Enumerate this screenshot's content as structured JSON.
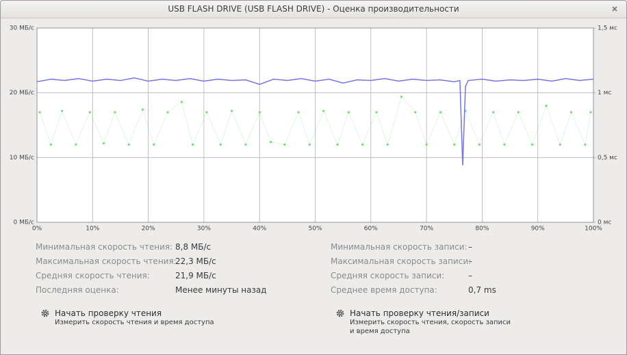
{
  "window": {
    "title": "USB FLASH DRIVE (USB FLASH DRIVE) - Оценка производительности"
  },
  "chart_data": {
    "type": "line",
    "xlim": [
      0,
      100
    ],
    "xticks": [
      {
        "value": 0,
        "label": "0%"
      },
      {
        "value": 10,
        "label": "10%"
      },
      {
        "value": 20,
        "label": "20%"
      },
      {
        "value": 30,
        "label": "30%"
      },
      {
        "value": 40,
        "label": "40%"
      },
      {
        "value": 50,
        "label": "50%"
      },
      {
        "value": 60,
        "label": "60%"
      },
      {
        "value": 70,
        "label": "70%"
      },
      {
        "value": 80,
        "label": "80%"
      },
      {
        "value": 90,
        "label": "90%"
      },
      {
        "value": 100,
        "label": "100%"
      }
    ],
    "ylim": [
      0,
      30
    ],
    "yticks": [
      {
        "value": 0,
        "label": "0 МБ/с"
      },
      {
        "value": 10,
        "label": "10 МБ/с"
      },
      {
        "value": 20,
        "label": "20 МБ/с"
      },
      {
        "value": 30,
        "label": "30 МБ/с"
      }
    ],
    "y2lim": [
      0,
      1.5
    ],
    "y2ticks": [
      {
        "value": 0,
        "label": "0 мс"
      },
      {
        "value": 0.5,
        "label": "0,5 мс"
      },
      {
        "value": 1,
        "label": "1 мс"
      },
      {
        "value": 1.5,
        "label": "1,5 мс"
      }
    ],
    "grid": true,
    "series": [
      {
        "color": "#7474e6",
        "x": [
          0,
          2.5,
          5,
          7.5,
          10,
          12.5,
          15,
          17.5,
          20,
          22.5,
          25,
          27.5,
          30,
          32.5,
          35,
          37.5,
          40,
          42.5,
          45,
          47.5,
          50,
          52.5,
          55,
          57.5,
          60,
          62.5,
          65,
          67.5,
          70,
          72.5,
          75,
          76,
          76.5,
          77,
          77.5,
          80,
          82.5,
          85,
          87.5,
          90,
          92.5,
          95,
          97.5,
          100
        ],
        "values": [
          21.7,
          22.1,
          21.9,
          22.2,
          21.8,
          22.1,
          21.9,
          22.3,
          21.8,
          22.1,
          21.9,
          22.2,
          21.8,
          22.1,
          21.9,
          22.0,
          21.3,
          22.1,
          21.9,
          22.2,
          21.8,
          22.1,
          21.5,
          22.0,
          21.9,
          22.2,
          21.8,
          22.1,
          21.9,
          22.0,
          21.7,
          21.9,
          8.8,
          21.0,
          21.9,
          22.1,
          21.8,
          22.0,
          21.9,
          22.1,
          21.8,
          22.2,
          21.9,
          22.1
        ]
      },
      {
        "color": "#6ee06e",
        "axis": "y2",
        "markers": true,
        "x": [
          0.5,
          2.5,
          4.5,
          7,
          9.5,
          12,
          14,
          16.5,
          19,
          21,
          23.5,
          26,
          28,
          30.5,
          33,
          35,
          37.5,
          40,
          42,
          44.5,
          47,
          49,
          51.5,
          54,
          56,
          58.5,
          61,
          63,
          65.5,
          68,
          70,
          72.5,
          75,
          77,
          79.5,
          82,
          84,
          86.5,
          89,
          91.5,
          94,
          96,
          98.5,
          99.5
        ],
        "values": [
          0.85,
          0.6,
          0.86,
          0.6,
          0.85,
          0.61,
          0.85,
          0.6,
          0.87,
          0.6,
          0.85,
          0.93,
          0.6,
          0.85,
          0.6,
          0.86,
          0.6,
          0.85,
          0.62,
          0.6,
          0.85,
          0.6,
          0.86,
          0.6,
          0.85,
          0.6,
          0.85,
          0.6,
          0.97,
          0.85,
          0.6,
          0.85,
          0.6,
          0.86,
          0.6,
          0.85,
          0.6,
          0.85,
          0.6,
          0.9,
          0.6,
          0.85,
          0.6,
          0.85
        ]
      }
    ]
  },
  "stats_left": [
    {
      "label": "Минимальная скорость чтения:",
      "value": "8,8 МБ/с"
    },
    {
      "label": "Максимальная скорость чтения:",
      "value": "22,3 МБ/с"
    },
    {
      "label": "Средняя скорость чтения:",
      "value": "21,9 МБ/с"
    },
    {
      "label": "Последняя оценка:",
      "value": "Менее минуты назад"
    }
  ],
  "stats_right": [
    {
      "label": "Минимальная скорость записи:",
      "value": "–"
    },
    {
      "label": "Максимальная скорость записи:",
      "value": "–"
    },
    {
      "label": "Средняя скорость записи:",
      "value": "–"
    },
    {
      "label": "Среднее время доступа:",
      "value": "0,7 ms"
    }
  ],
  "actions": [
    {
      "title": "Начать проверку чтения",
      "description": "Измерить скорость чтения и время доступа"
    },
    {
      "title": "Начать проверку чтения/записи",
      "description": "Измерить скорость чтения, скорость записи и время доступа"
    }
  ]
}
